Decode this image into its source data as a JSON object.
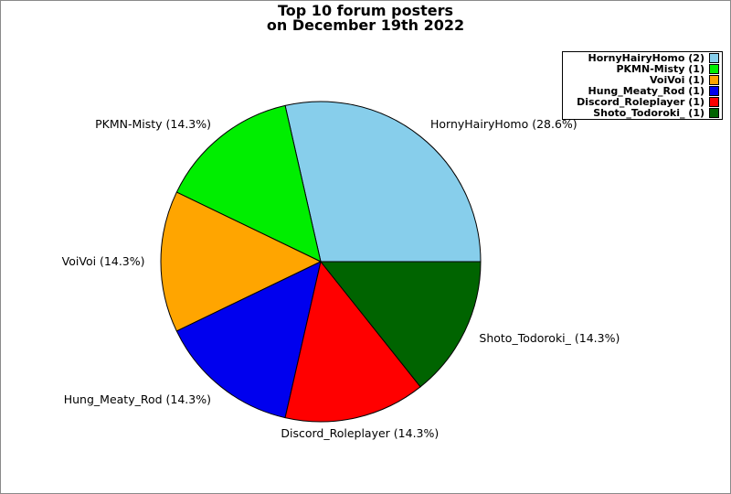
{
  "window": {
    "background": "#ffffff",
    "frame_border_color": "#8a8a8a"
  },
  "chart_data": {
    "type": "pie",
    "title": "Top 10 forum posters\non December 19th 2022",
    "title_lines": [
      "Top 10 forum posters",
      "on December 19th 2022"
    ],
    "start_angle_deg": 0,
    "direction": "counterclockwise",
    "total_posts": 7,
    "slice_edge_color": "#000000",
    "slices": [
      {
        "label": "HornyHairyHomo",
        "posts": 2,
        "percent": 28.6,
        "display": "HornyHairyHomo (28.6%)",
        "color": "#87CEEB"
      },
      {
        "label": "PKMN-Misty",
        "posts": 1,
        "percent": 14.3,
        "display": "PKMN-Misty (14.3%)",
        "color": "#00EE00"
      },
      {
        "label": "VoiVoi",
        "posts": 1,
        "percent": 14.3,
        "display": "VoiVoi (14.3%)",
        "color": "#FFA500"
      },
      {
        "label": "Hung_Meaty_Rod",
        "posts": 1,
        "percent": 14.3,
        "display": "Hung_Meaty_Rod (14.3%)",
        "color": "#0000EE"
      },
      {
        "label": "Discord_Roleplayer",
        "posts": 1,
        "percent": 14.3,
        "display": "Discord_Roleplayer (14.3%)",
        "color": "#FF0000"
      },
      {
        "label": "Shoto_Todoroki_",
        "posts": 1,
        "percent": 14.3,
        "display": "Shoto_Todoroki_ (14.3%)",
        "color": "#006400"
      }
    ],
    "legend": {
      "position": "upper right",
      "items": [
        {
          "label": "HornyHairyHomo (2)",
          "color": "#87CEEB"
        },
        {
          "label": "PKMN-Misty (1)",
          "color": "#00EE00"
        },
        {
          "label": "VoiVoi (1)",
          "color": "#FFA500"
        },
        {
          "label": "Hung_Meaty_Rod (1)",
          "color": "#0000EE"
        },
        {
          "label": "Discord_Roleplayer (1)",
          "color": "#FF0000"
        },
        {
          "label": "Shoto_Todoroki_ (1)",
          "color": "#006400"
        }
      ]
    }
  }
}
